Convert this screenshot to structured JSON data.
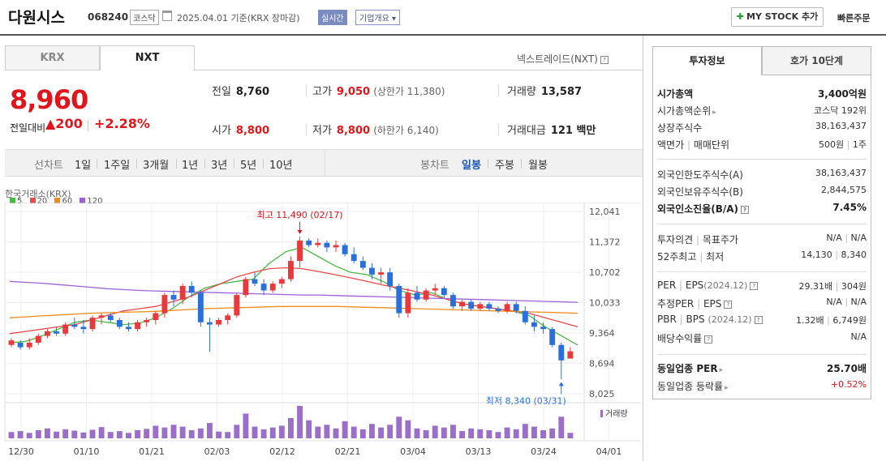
{
  "header": {
    "stock_name": "다원시스",
    "code": "068240",
    "market": "코스닥",
    "date_text": "2025.04.01  기준(KRX 장마감)",
    "live_label": "실시간",
    "company_info_label": "기업개요 ▾",
    "mystock_label": "MY STOCK 추가",
    "fast_order_label": "빠른주문"
  },
  "exchange_tabs": [
    "KRX",
    "NXT"
  ],
  "nxt_label": "넥스트레이드(NXT)",
  "quote": {
    "price": "8,960",
    "change_label": "전일대비",
    "change": "▲200",
    "rate": "+2.28%",
    "prev_label": "전일",
    "prev": "8,760",
    "high_label": "고가",
    "high": "9,050",
    "upper_limit": "(상한가 11,380)",
    "volume_label": "거래량",
    "volume": "13,587",
    "open_label": "시가",
    "open": "8,800",
    "low_label": "저가",
    "low": "8,800",
    "lower_limit": "(하한가 6,140)",
    "amount_label": "거래대금",
    "amount": "121 백만"
  },
  "period_bar": {
    "line_label": "선차트",
    "ranges": [
      "1일",
      "1주일",
      "3개월",
      "1년",
      "3년",
      "5년",
      "10년"
    ],
    "candle_label": "봉차트",
    "candles": [
      "일봉",
      "주봉",
      "월봉"
    ],
    "active_candle": "일봉"
  },
  "chart_source": "한국거래소(KRX)",
  "legend": [
    {
      "label": "5",
      "color": "#4cb848"
    },
    {
      "label": "20",
      "color": "#e8494c"
    },
    {
      "label": "60",
      "color": "#ef8c1c"
    },
    {
      "label": "120",
      "color": "#9d62d6"
    }
  ],
  "chart_data": {
    "type": "candlestick",
    "y_ticks": [
      "12,041",
      "11,372",
      "10,702",
      "10,033",
      "9,364",
      "8,694",
      "8,025"
    ],
    "y_range": [
      8025,
      12041
    ],
    "x_ticks": [
      "12/30",
      "01/10",
      "01/21",
      "02/03",
      "02/12",
      "02/21",
      "03/04",
      "03/13",
      "03/24",
      "04/01"
    ],
    "max_label": "최고 11,490 (02/17)",
    "min_label": "최저 8,340 (03/31)",
    "volume_label": "거래량",
    "colors": {
      "up": "#e8393c",
      "down": "#2a6fdb",
      "volume": "#9b6fc9"
    },
    "candles": [
      [
        9100,
        9250,
        9050,
        9200
      ],
      [
        9150,
        9200,
        9000,
        9050
      ],
      [
        9050,
        9250,
        9000,
        9150
      ],
      [
        9150,
        9350,
        9100,
        9300
      ],
      [
        9300,
        9450,
        9250,
        9400
      ],
      [
        9400,
        9500,
        9300,
        9350
      ],
      [
        9350,
        9600,
        9300,
        9550
      ],
      [
        9550,
        9700,
        9450,
        9500
      ],
      [
        9500,
        9650,
        9350,
        9450
      ],
      [
        9450,
        9750,
        9400,
        9700
      ],
      [
        9700,
        9800,
        9550,
        9750
      ],
      [
        9750,
        9800,
        9600,
        9650
      ],
      [
        9650,
        9700,
        9450,
        9500
      ],
      [
        9500,
        9600,
        9400,
        9450
      ],
      [
        9450,
        9650,
        9400,
        9600
      ],
      [
        9600,
        9700,
        9500,
        9650
      ],
      [
        9650,
        9850,
        9550,
        9800
      ],
      [
        9800,
        10250,
        9700,
        10200
      ],
      [
        10200,
        10300,
        9950,
        10100
      ],
      [
        10100,
        10450,
        10000,
        10400
      ],
      [
        10400,
        10500,
        10150,
        10250
      ],
      [
        10250,
        10300,
        9500,
        9600
      ],
      [
        9600,
        9700,
        8950,
        9550
      ],
      [
        9550,
        9700,
        9500,
        9650
      ],
      [
        9650,
        9800,
        9550,
        9750
      ],
      [
        9750,
        10250,
        9700,
        10200
      ],
      [
        10200,
        10600,
        10150,
        10550
      ],
      [
        10550,
        10700,
        10400,
        10450
      ],
      [
        10450,
        10550,
        10200,
        10300
      ],
      [
        10300,
        10500,
        10250,
        10450
      ],
      [
        10450,
        10600,
        10350,
        10550
      ],
      [
        10550,
        11050,
        10500,
        10950
      ],
      [
        10950,
        11490,
        10800,
        11400
      ],
      [
        11400,
        11450,
        11250,
        11300
      ],
      [
        11300,
        11450,
        11250,
        11350
      ],
      [
        11350,
        11400,
        11150,
        11250
      ],
      [
        11250,
        11400,
        11150,
        11300
      ],
      [
        11300,
        11350,
        11050,
        11100
      ],
      [
        11100,
        11250,
        10900,
        10950
      ],
      [
        10950,
        11050,
        10750,
        10800
      ],
      [
        10800,
        10900,
        10550,
        10650
      ],
      [
        10650,
        10800,
        10450,
        10700
      ],
      [
        10700,
        10800,
        10300,
        10400
      ],
      [
        10400,
        10450,
        9700,
        9800
      ],
      [
        9800,
        10350,
        9700,
        10250
      ],
      [
        10250,
        10400,
        10050,
        10100
      ],
      [
        10100,
        10350,
        10050,
        10300
      ],
      [
        10300,
        10450,
        10200,
        10350
      ],
      [
        10350,
        10400,
        10150,
        10200
      ],
      [
        10200,
        10250,
        9900,
        9950
      ],
      [
        9950,
        10100,
        9850,
        10050
      ],
      [
        10050,
        10100,
        9850,
        9900
      ],
      [
        9900,
        10050,
        9850,
        10000
      ],
      [
        10000,
        10050,
        9850,
        9900
      ],
      [
        9900,
        9950,
        9800,
        9850
      ],
      [
        9850,
        10050,
        9800,
        10000
      ],
      [
        10000,
        10050,
        9800,
        9850
      ],
      [
        9850,
        9950,
        9550,
        9600
      ],
      [
        9600,
        9750,
        9400,
        9500
      ],
      [
        9500,
        9600,
        9350,
        9450
      ],
      [
        9450,
        9500,
        9050,
        9100
      ],
      [
        9100,
        9150,
        8340,
        8760
      ],
      [
        8800,
        9050,
        8800,
        8960
      ]
    ],
    "volumes": [
      14,
      16,
      12,
      18,
      22,
      15,
      20,
      17,
      13,
      19,
      25,
      14,
      16,
      12,
      18,
      21,
      28,
      24,
      30,
      26,
      18,
      22,
      34,
      15,
      14,
      30,
      55,
      26,
      20,
      24,
      28,
      45,
      72,
      40,
      26,
      30,
      22,
      38,
      26,
      20,
      32,
      24,
      30,
      48,
      40,
      22,
      18,
      28,
      24,
      30,
      16,
      22,
      20,
      18,
      14,
      24,
      20,
      32,
      26,
      18,
      22,
      48,
      12
    ],
    "ma_series": [
      {
        "name": "5",
        "color": "#4cb848",
        "values": [
          9150,
          9180,
          9300,
          9450,
          9600,
          9650,
          9600,
          9550,
          9580,
          9700,
          9900,
          10150,
          10350,
          10450,
          10500,
          10550,
          10900,
          11150,
          11250,
          11050,
          10850,
          10700,
          10650,
          10500,
          10300,
          10200,
          10250,
          10100,
          10000,
          9950,
          9900,
          9850,
          9750,
          9500,
          9300,
          9100
        ]
      },
      {
        "name": "20",
        "color": "#e8494c",
        "values": [
          9350,
          9400,
          9450,
          9500,
          9550,
          9650,
          9750,
          9850,
          9900,
          9950,
          10050,
          10150,
          10300,
          10450,
          10600,
          10700,
          10780,
          10800,
          10780,
          10720,
          10650,
          10580,
          10500,
          10420,
          10350,
          10280,
          10200,
          10100,
          10000,
          9950,
          9900,
          9850,
          9800,
          9700,
          9600,
          9500
        ]
      },
      {
        "name": "60",
        "color": "#ef8c1c",
        "values": [
          9700,
          9720,
          9740,
          9760,
          9780,
          9800,
          9810,
          9820,
          9830,
          9840,
          9860,
          9880,
          9900,
          9910,
          9920,
          9930,
          9940,
          9950,
          9950,
          9950,
          9950,
          9940,
          9930,
          9920,
          9910,
          9900,
          9890,
          9880,
          9870,
          9860,
          9850,
          9840,
          9830,
          9820,
          9810,
          9800
        ]
      },
      {
        "name": "120",
        "color": "#9d62d6",
        "values": [
          10500,
          10480,
          10460,
          10430,
          10400,
          10370,
          10340,
          10320,
          10300,
          10290,
          10280,
          10270,
          10260,
          10250,
          10240,
          10230,
          10220,
          10210,
          10200,
          10200,
          10190,
          10180,
          10170,
          10160,
          10150,
          10140,
          10130,
          10120,
          10110,
          10100,
          10090,
          10080,
          10070,
          10060,
          10050,
          10040
        ]
      }
    ]
  },
  "right_tabs": [
    "투자정보",
    "호가 10단계"
  ],
  "invest_info": {
    "market_cap_label": "시가총액",
    "market_cap": "3,400억원",
    "cap_rank_label": "시가총액순위",
    "cap_rank": "코스닥 192위",
    "shares_label": "상장주식수",
    "shares": "38,163,437",
    "par_label": "액면가",
    "trade_unit_label": "매매단위",
    "par": "500원",
    "trade_unit": "1주",
    "foreign_limit_label": "외국인한도주식수(A)",
    "foreign_limit": "38,163,437",
    "foreign_hold_label": "외국인보유주식수(B)",
    "foreign_hold": "2,844,575",
    "foreign_ratio_label": "외국인소진율(B/A)",
    "foreign_ratio": "7.45%",
    "opinion_label": "투자의견",
    "target_label": "목표주가",
    "opinion": "N/A",
    "target": "N/A",
    "w52_high_label": "52주최고",
    "w52_low_label": "최저",
    "w52_high": "14,130",
    "w52_low": "8,340",
    "per_label": "PER",
    "eps_label": "EPS",
    "period1": "(2024.12)",
    "per": "29.31배",
    "eps": "304원",
    "est_per_label": "추정PER",
    "est_eps_label": "EPS",
    "est_per": "N/A",
    "est_eps": "N/A",
    "pbr_label": "PBR",
    "bps_label": "BPS",
    "period2": "(2024.12)",
    "pbr": "1.32배",
    "bps": "6,749원",
    "dividend_label": "배당수익률",
    "dividend": "N/A",
    "peer_per_label": "동일업종 PER",
    "peer_per": "25.70배",
    "peer_rate_label": "동일업종 등락률",
    "peer_rate": "+0.52%"
  }
}
